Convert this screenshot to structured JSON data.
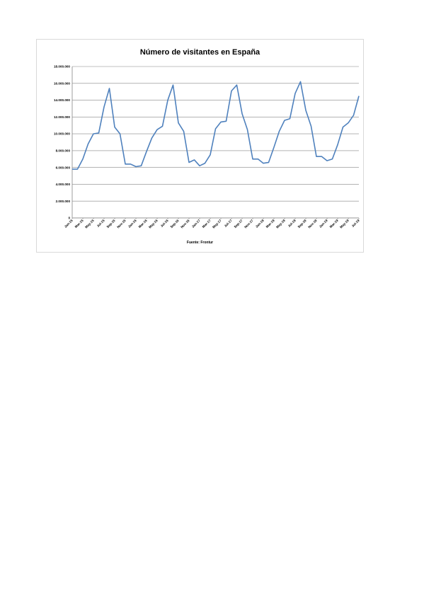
{
  "chart_data": {
    "type": "line",
    "title": "Número de visitantes en España",
    "source": "Fuente: Frontur",
    "xlabel": "",
    "ylabel": "",
    "ylim": [
      0,
      18000000
    ],
    "yticks": [
      "0",
      "2.000.000",
      "4.000.000",
      "6.000.000",
      "8.000.000",
      "10.000.000",
      "12.000.000",
      "14.000.000",
      "16.000.000",
      "18.000.000"
    ],
    "grid": true,
    "legend": "none",
    "line_color": "#4f81bd",
    "x_tick_labels": [
      {
        "index": 0,
        "label": "Jan-15"
      },
      {
        "index": 2,
        "label": "Mar-15"
      },
      {
        "index": 4,
        "label": "May-15"
      },
      {
        "index": 6,
        "label": "Jul-15"
      },
      {
        "index": 8,
        "label": "Sep-15"
      },
      {
        "index": 10,
        "label": "Nov-15"
      },
      {
        "index": 12,
        "label": "Jan-16"
      },
      {
        "index": 14,
        "label": "Mar-16"
      },
      {
        "index": 16,
        "label": "May-16"
      },
      {
        "index": 18,
        "label": "Jul-16"
      },
      {
        "index": 20,
        "label": "Sep-16"
      },
      {
        "index": 22,
        "label": "Nov-16"
      },
      {
        "index": 24,
        "label": "Jan-17"
      },
      {
        "index": 26,
        "label": "Mar-17"
      },
      {
        "index": 28,
        "label": "May-17"
      },
      {
        "index": 30,
        "label": "Jul-17"
      },
      {
        "index": 32,
        "label": "Sep-17"
      },
      {
        "index": 34,
        "label": "Nov-17"
      },
      {
        "index": 36,
        "label": "Jan-18"
      },
      {
        "index": 38,
        "label": "Mar-18"
      },
      {
        "index": 40,
        "label": "May-18"
      },
      {
        "index": 42,
        "label": "Jul-18"
      },
      {
        "index": 44,
        "label": "Sep-18"
      },
      {
        "index": 46,
        "label": "Nov-18"
      },
      {
        "index": 48,
        "label": "Jan-19"
      },
      {
        "index": 50,
        "label": "Mar-19"
      },
      {
        "index": 52,
        "label": "May-19"
      },
      {
        "index": 54,
        "label": "Jul-19"
      }
    ],
    "series": [
      {
        "x": [
          "Jan-15",
          "Feb-15",
          "Mar-15",
          "Apr-15",
          "May-15",
          "Jun-15",
          "Jul-15",
          "Aug-15",
          "Sep-15",
          "Oct-15",
          "Nov-15",
          "Dec-15",
          "Jan-16",
          "Feb-16",
          "Mar-16",
          "Apr-16",
          "May-16",
          "Jun-16",
          "Jul-16",
          "Aug-16",
          "Sep-16",
          "Oct-16",
          "Nov-16",
          "Dec-16",
          "Jan-17",
          "Feb-17",
          "Mar-17",
          "Apr-17",
          "May-17",
          "Jun-17",
          "Jul-17",
          "Aug-17",
          "Sep-17",
          "Oct-17",
          "Nov-17",
          "Dec-17",
          "Jan-18",
          "Feb-18",
          "Mar-18",
          "Apr-18",
          "May-18",
          "Jun-18",
          "Jul-18",
          "Aug-18",
          "Sep-18",
          "Oct-18",
          "Nov-18",
          "Dec-18",
          "Jan-19",
          "Feb-19",
          "Mar-19",
          "Apr-19",
          "May-19",
          "Jun-19",
          "Jul-19"
        ],
        "values": [
          5800000,
          5800000,
          7000000,
          8800000,
          10000000,
          10100000,
          13200000,
          15400000,
          10800000,
          10000000,
          6400000,
          6400000,
          6100000,
          6200000,
          7900000,
          9500000,
          10500000,
          10900000,
          14000000,
          15800000,
          11300000,
          10300000,
          6600000,
          6900000,
          6200000,
          6500000,
          7500000,
          10600000,
          11400000,
          11500000,
          15100000,
          15800000,
          12400000,
          10500000,
          7000000,
          7000000,
          6500000,
          6600000,
          8400000,
          10300000,
          11600000,
          11800000,
          14800000,
          16200000,
          12800000,
          10900000,
          7300000,
          7300000,
          6800000,
          7000000,
          8700000,
          10800000,
          11300000,
          12200000,
          14500000
        ]
      }
    ]
  }
}
